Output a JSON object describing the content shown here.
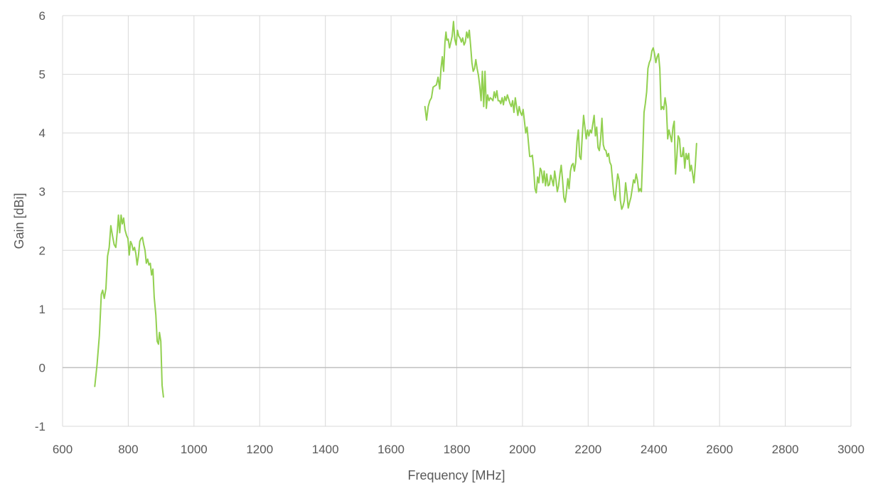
{
  "chart_data": {
    "type": "line",
    "title": "",
    "xlabel": "Frequency [MHz]",
    "ylabel": "Gain [dBi]",
    "xlim": [
      600,
      3000
    ],
    "ylim": [
      -1,
      6
    ],
    "x_ticks": [
      600,
      800,
      1000,
      1200,
      1400,
      1600,
      1800,
      2000,
      2200,
      2400,
      2600,
      2800,
      3000
    ],
    "y_ticks": [
      -1,
      0,
      1,
      2,
      3,
      4,
      5,
      6
    ],
    "grid": true,
    "legend": "none",
    "series_color": "#92d050",
    "grid_color": "#d9d9d9",
    "zero_line_color": "#bfbfbf",
    "series": [
      {
        "segments": [
          [
            [
              698,
              -0.32
            ],
            [
              705,
              0.05
            ],
            [
              712,
              0.55
            ],
            [
              718,
              1.25
            ],
            [
              722,
              1.32
            ],
            [
              727,
              1.18
            ],
            [
              732,
              1.35
            ],
            [
              737,
              1.9
            ],
            [
              742,
              2.05
            ],
            [
              747,
              2.42
            ],
            [
              752,
              2.25
            ],
            [
              757,
              2.1
            ],
            [
              762,
              2.05
            ],
            [
              767,
              2.35
            ],
            [
              770,
              2.6
            ],
            [
              774,
              2.3
            ],
            [
              778,
              2.6
            ],
            [
              782,
              2.45
            ],
            [
              786,
              2.55
            ],
            [
              790,
              2.35
            ],
            [
              795,
              2.25
            ],
            [
              799,
              2.2
            ],
            [
              803,
              1.92
            ],
            [
              807,
              2.15
            ],
            [
              811,
              2.1
            ],
            [
              815,
              2.0
            ],
            [
              819,
              2.05
            ],
            [
              823,
              1.95
            ],
            [
              827,
              1.75
            ],
            [
              831,
              1.9
            ],
            [
              835,
              2.15
            ],
            [
              839,
              2.2
            ],
            [
              843,
              2.22
            ],
            [
              847,
              2.1
            ],
            [
              851,
              2.0
            ],
            [
              855,
              1.78
            ],
            [
              859,
              1.85
            ],
            [
              863,
              1.75
            ],
            [
              867,
              1.78
            ],
            [
              871,
              1.58
            ],
            [
              875,
              1.68
            ],
            [
              879,
              1.2
            ],
            [
              884,
              0.9
            ],
            [
              888,
              0.45
            ],
            [
              892,
              0.4
            ],
            [
              895,
              0.6
            ],
            [
              899,
              0.45
            ],
            [
              903,
              -0.3
            ],
            [
              907,
              -0.5
            ]
          ],
          [
            [
              1703,
              4.45
            ],
            [
              1708,
              4.22
            ],
            [
              1713,
              4.45
            ],
            [
              1718,
              4.55
            ],
            [
              1723,
              4.6
            ],
            [
              1728,
              4.78
            ],
            [
              1733,
              4.8
            ],
            [
              1738,
              4.82
            ],
            [
              1743,
              4.95
            ],
            [
              1748,
              4.75
            ],
            [
              1752,
              5.1
            ],
            [
              1756,
              5.3
            ],
            [
              1760,
              5.05
            ],
            [
              1764,
              5.55
            ],
            [
              1767,
              5.72
            ],
            [
              1770,
              5.58
            ],
            [
              1774,
              5.6
            ],
            [
              1778,
              5.45
            ],
            [
              1782,
              5.55
            ],
            [
              1786,
              5.65
            ],
            [
              1790,
              5.9
            ],
            [
              1794,
              5.6
            ],
            [
              1798,
              5.5
            ],
            [
              1802,
              5.75
            ],
            [
              1806,
              5.65
            ],
            [
              1810,
              5.62
            ],
            [
              1814,
              5.55
            ],
            [
              1818,
              5.62
            ],
            [
              1822,
              5.5
            ],
            [
              1826,
              5.55
            ],
            [
              1830,
              5.72
            ],
            [
              1834,
              5.62
            ],
            [
              1838,
              5.75
            ],
            [
              1842,
              5.5
            ],
            [
              1846,
              5.2
            ],
            [
              1850,
              5.05
            ],
            [
              1854,
              5.1
            ],
            [
              1858,
              5.25
            ],
            [
              1862,
              5.1
            ],
            [
              1866,
              4.98
            ],
            [
              1870,
              4.8
            ],
            [
              1874,
              4.55
            ],
            [
              1878,
              5.05
            ],
            [
              1882,
              4.45
            ],
            [
              1886,
              5.05
            ],
            [
              1890,
              4.42
            ],
            [
              1894,
              4.65
            ],
            [
              1898,
              4.55
            ],
            [
              1902,
              4.6
            ],
            [
              1906,
              4.58
            ],
            [
              1910,
              4.55
            ],
            [
              1914,
              4.7
            ],
            [
              1918,
              4.6
            ],
            [
              1922,
              4.72
            ],
            [
              1926,
              4.55
            ],
            [
              1930,
              4.55
            ],
            [
              1934,
              4.5
            ],
            [
              1938,
              4.6
            ],
            [
              1942,
              4.48
            ],
            [
              1946,
              4.62
            ],
            [
              1950,
              4.55
            ],
            [
              1954,
              4.65
            ],
            [
              1958,
              4.58
            ],
            [
              1962,
              4.5
            ],
            [
              1966,
              4.45
            ],
            [
              1970,
              4.55
            ],
            [
              1974,
              4.35
            ],
            [
              1978,
              4.6
            ],
            [
              1982,
              4.45
            ],
            [
              1986,
              4.3
            ],
            [
              1990,
              4.45
            ],
            [
              1994,
              4.35
            ],
            [
              1998,
              4.3
            ],
            [
              2002,
              4.4
            ],
            [
              2006,
              4.2
            ],
            [
              2010,
              4.0
            ],
            [
              2014,
              4.1
            ],
            [
              2018,
              3.85
            ],
            [
              2022,
              3.6
            ],
            [
              2026,
              3.6
            ],
            [
              2030,
              3.62
            ],
            [
              2034,
              3.4
            ],
            [
              2038,
              3.05
            ],
            [
              2042,
              2.98
            ],
            [
              2046,
              3.25
            ],
            [
              2050,
              3.15
            ],
            [
              2054,
              3.4
            ],
            [
              2058,
              3.35
            ],
            [
              2062,
              3.15
            ],
            [
              2066,
              3.35
            ],
            [
              2070,
              3.1
            ],
            [
              2074,
              3.3
            ],
            [
              2078,
              3.1
            ],
            [
              2082,
              3.12
            ],
            [
              2086,
              3.28
            ],
            [
              2090,
              3.2
            ],
            [
              2094,
              3.1
            ],
            [
              2098,
              3.35
            ],
            [
              2102,
              3.2
            ],
            [
              2106,
              3.0
            ],
            [
              2110,
              3.1
            ],
            [
              2114,
              3.3
            ],
            [
              2118,
              3.45
            ],
            [
              2122,
              3.2
            ],
            [
              2126,
              2.9
            ],
            [
              2130,
              2.82
            ],
            [
              2134,
              3.0
            ],
            [
              2138,
              3.22
            ],
            [
              2142,
              3.05
            ],
            [
              2146,
              3.35
            ],
            [
              2150,
              3.45
            ],
            [
              2154,
              3.48
            ],
            [
              2158,
              3.35
            ],
            [
              2162,
              3.5
            ],
            [
              2166,
              3.85
            ],
            [
              2170,
              4.05
            ],
            [
              2174,
              3.6
            ],
            [
              2178,
              3.55
            ],
            [
              2182,
              3.95
            ],
            [
              2186,
              4.3
            ],
            [
              2190,
              4.1
            ],
            [
              2194,
              3.9
            ],
            [
              2198,
              4.05
            ],
            [
              2202,
              3.95
            ],
            [
              2206,
              4.05
            ],
            [
              2210,
              4.0
            ],
            [
              2214,
              4.15
            ],
            [
              2218,
              4.3
            ],
            [
              2222,
              3.95
            ],
            [
              2226,
              4.1
            ],
            [
              2230,
              3.75
            ],
            [
              2234,
              3.7
            ],
            [
              2238,
              3.9
            ],
            [
              2242,
              4.25
            ],
            [
              2246,
              3.8
            ],
            [
              2250,
              3.72
            ],
            [
              2254,
              3.7
            ],
            [
              2258,
              3.6
            ],
            [
              2262,
              3.65
            ],
            [
              2266,
              3.5
            ],
            [
              2270,
              3.45
            ],
            [
              2274,
              3.2
            ],
            [
              2278,
              2.95
            ],
            [
              2282,
              2.85
            ],
            [
              2286,
              3.1
            ],
            [
              2290,
              3.3
            ],
            [
              2294,
              3.2
            ],
            [
              2298,
              2.85
            ],
            [
              2302,
              2.7
            ],
            [
              2306,
              2.75
            ],
            [
              2310,
              2.85
            ],
            [
              2314,
              3.15
            ],
            [
              2318,
              2.95
            ],
            [
              2322,
              2.72
            ],
            [
              2326,
              2.82
            ],
            [
              2330,
              2.9
            ],
            [
              2334,
              3.05
            ],
            [
              2338,
              3.2
            ],
            [
              2342,
              3.15
            ],
            [
              2346,
              3.3
            ],
            [
              2350,
              3.2
            ],
            [
              2354,
              3.0
            ],
            [
              2358,
              3.05
            ],
            [
              2362,
              3.0
            ],
            [
              2366,
              3.6
            ],
            [
              2370,
              4.35
            ],
            [
              2374,
              4.5
            ],
            [
              2378,
              4.7
            ],
            [
              2382,
              5.1
            ],
            [
              2386,
              5.2
            ],
            [
              2390,
              5.25
            ],
            [
              2394,
              5.4
            ],
            [
              2398,
              5.45
            ],
            [
              2402,
              5.35
            ],
            [
              2406,
              5.2
            ],
            [
              2410,
              5.3
            ],
            [
              2414,
              5.35
            ],
            [
              2418,
              5.1
            ],
            [
              2422,
              4.4
            ],
            [
              2426,
              4.45
            ],
            [
              2430,
              4.4
            ],
            [
              2434,
              4.6
            ],
            [
              2438,
              4.45
            ],
            [
              2442,
              3.9
            ],
            [
              2446,
              4.05
            ],
            [
              2450,
              3.95
            ],
            [
              2454,
              3.85
            ],
            [
              2458,
              4.1
            ],
            [
              2462,
              4.2
            ],
            [
              2466,
              3.3
            ],
            [
              2470,
              3.6
            ],
            [
              2474,
              3.95
            ],
            [
              2478,
              3.9
            ],
            [
              2482,
              3.6
            ],
            [
              2486,
              3.6
            ],
            [
              2490,
              3.75
            ],
            [
              2494,
              3.4
            ],
            [
              2498,
              3.65
            ],
            [
              2502,
              3.55
            ],
            [
              2506,
              3.65
            ],
            [
              2510,
              3.35
            ],
            [
              2514,
              3.45
            ],
            [
              2518,
              3.3
            ],
            [
              2522,
              3.15
            ],
            [
              2526,
              3.45
            ],
            [
              2530,
              3.82
            ]
          ]
        ]
      }
    ]
  }
}
